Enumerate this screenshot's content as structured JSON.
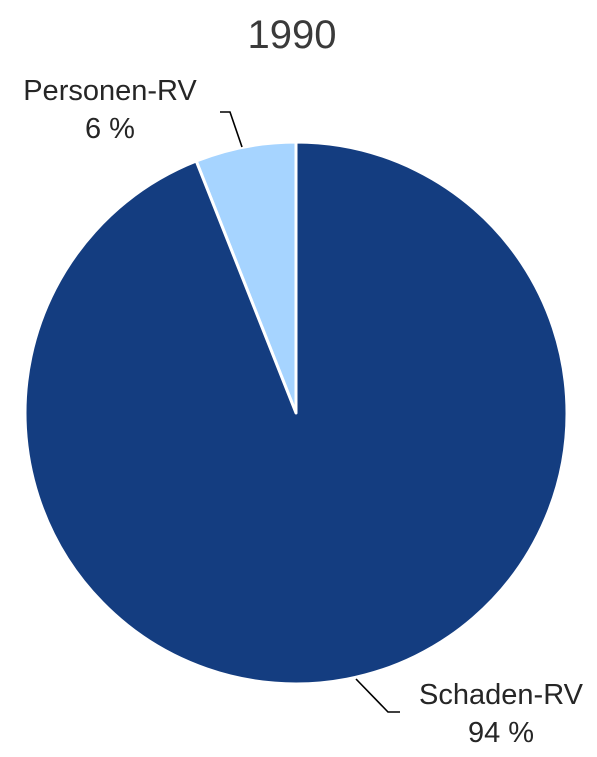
{
  "chart_data": {
    "type": "pie",
    "title": "1990",
    "slices": [
      {
        "label": "Personen-RV",
        "value": 6,
        "value_label": "6 %",
        "color": "#a6d4ff"
      },
      {
        "label": "Schaden-RV",
        "value": 94,
        "value_label": "94 %",
        "color": "#143d80"
      }
    ],
    "legend": "none",
    "labels": "outside-with-leader-lines"
  }
}
